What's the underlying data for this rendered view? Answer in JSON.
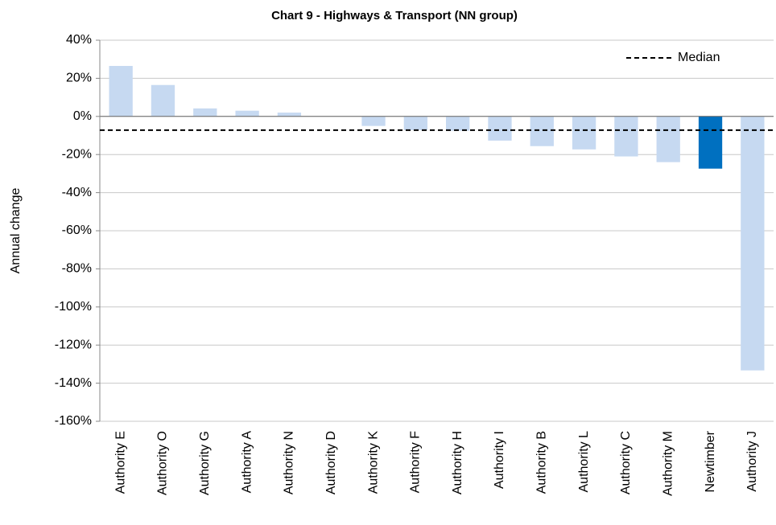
{
  "chart_data": {
    "type": "bar",
    "title": "Chart 9 - Highways & Transport (NN group)",
    "y_label": "Annual change",
    "categories": [
      "Authority E",
      "Authority O",
      "Authority G",
      "Authority A",
      "Authority N",
      "Authority D",
      "Authority K",
      "Authority F",
      "Authority H",
      "Authority I",
      "Authority B",
      "Authority L",
      "Authority C",
      "Authority M",
      "Newtimber",
      "Authority J"
    ],
    "values": [
      26.5,
      16.5,
      4.2,
      3,
      2,
      0,
      -5,
      -7.2,
      -7.5,
      -12.7,
      -15.6,
      -17.3,
      -21,
      -24,
      -27.4,
      -133.3
    ],
    "colors": [
      "#c6d9f1",
      "#c6d9f1",
      "#c6d9f1",
      "#c6d9f1",
      "#c6d9f1",
      "#c6d9f1",
      "#c6d9f1",
      "#c6d9f1",
      "#c6d9f1",
      "#c6d9f1",
      "#c6d9f1",
      "#c6d9f1",
      "#c6d9f1",
      "#c6d9f1",
      "#0070c0",
      "#c6d9f1"
    ],
    "median": {
      "name": "Median",
      "value": -7.2
    },
    "legend": "upper right",
    "ylim": [
      -160,
      40
    ],
    "yticks": [
      {
        "value": -160,
        "label": "-160%"
      },
      {
        "value": -140,
        "label": "-140%"
      },
      {
        "value": -120,
        "label": "-120%"
      },
      {
        "value": -100,
        "label": "-100%"
      },
      {
        "value": -80,
        "label": "-80%"
      },
      {
        "value": -60,
        "label": "-60%"
      },
      {
        "value": -40,
        "label": "-40%"
      },
      {
        "value": -20,
        "label": "-20%"
      },
      {
        "value": 0,
        "label": "0%"
      },
      {
        "value": 20,
        "label": "20%"
      },
      {
        "value": 40,
        "label": "40%"
      }
    ],
    "grid": true
  }
}
